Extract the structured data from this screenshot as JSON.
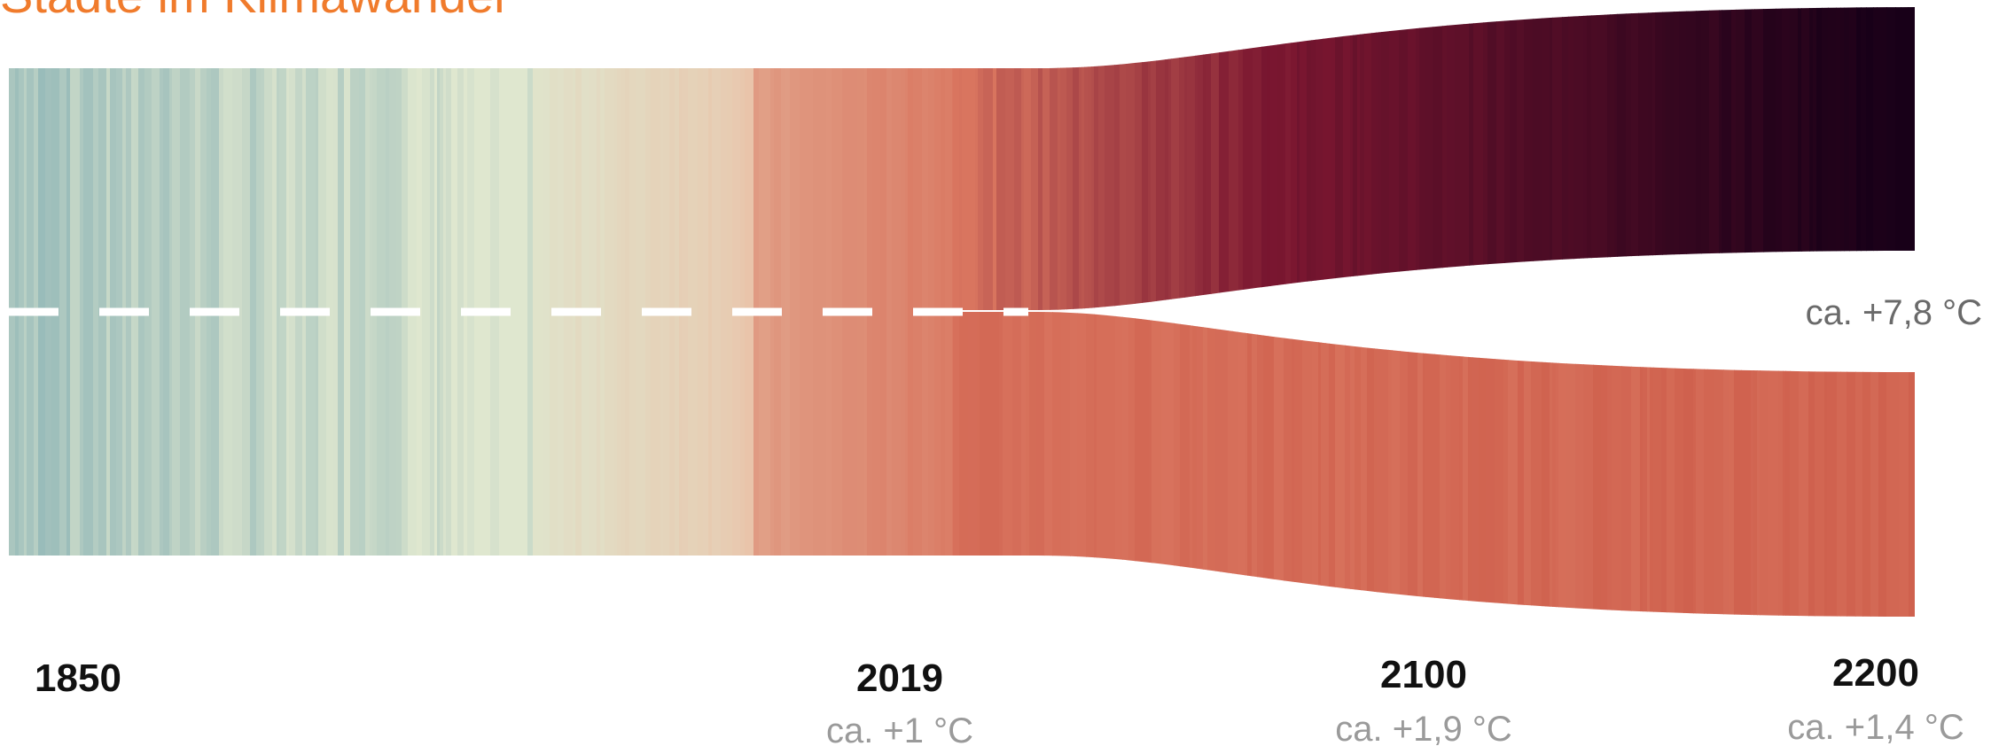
{
  "chart_data": {
    "type": "area",
    "title": "Städte im Klimawandel",
    "colors": {
      "title": "#f07b2c",
      "label_year": "#111111",
      "label_temp": "#9a9a9a",
      "label_right": "#6a6a6a",
      "dashed_line": "#ffffff",
      "stripe_cool": "#93b8b8",
      "stripe_neutral": "#dfe7cf",
      "stripe_warm": "#d9755f",
      "stripe_hot": "#180018"
    },
    "x_ticks": [
      {
        "year": "1850",
        "temp": ""
      },
      {
        "year": "2019",
        "temp": "ca. +1 °C"
      },
      {
        "year": "2100",
        "temp": "ca. +1,9 °C"
      },
      {
        "year": "2200",
        "temp": "ca. +1,4 °C"
      }
    ],
    "series": [
      {
        "label": "ca. +7,8 °C",
        "start_year": 2019,
        "end_year": 2200,
        "end_value": 7.8
      },
      {
        "label": "",
        "start_year": 2019,
        "end_year": 2200,
        "end_value": 1.4
      }
    ],
    "annotations": {
      "end_high": "ca. +7,8 °C"
    },
    "xlim": [
      1850,
      2200
    ],
    "grid": false,
    "legend": "none"
  }
}
